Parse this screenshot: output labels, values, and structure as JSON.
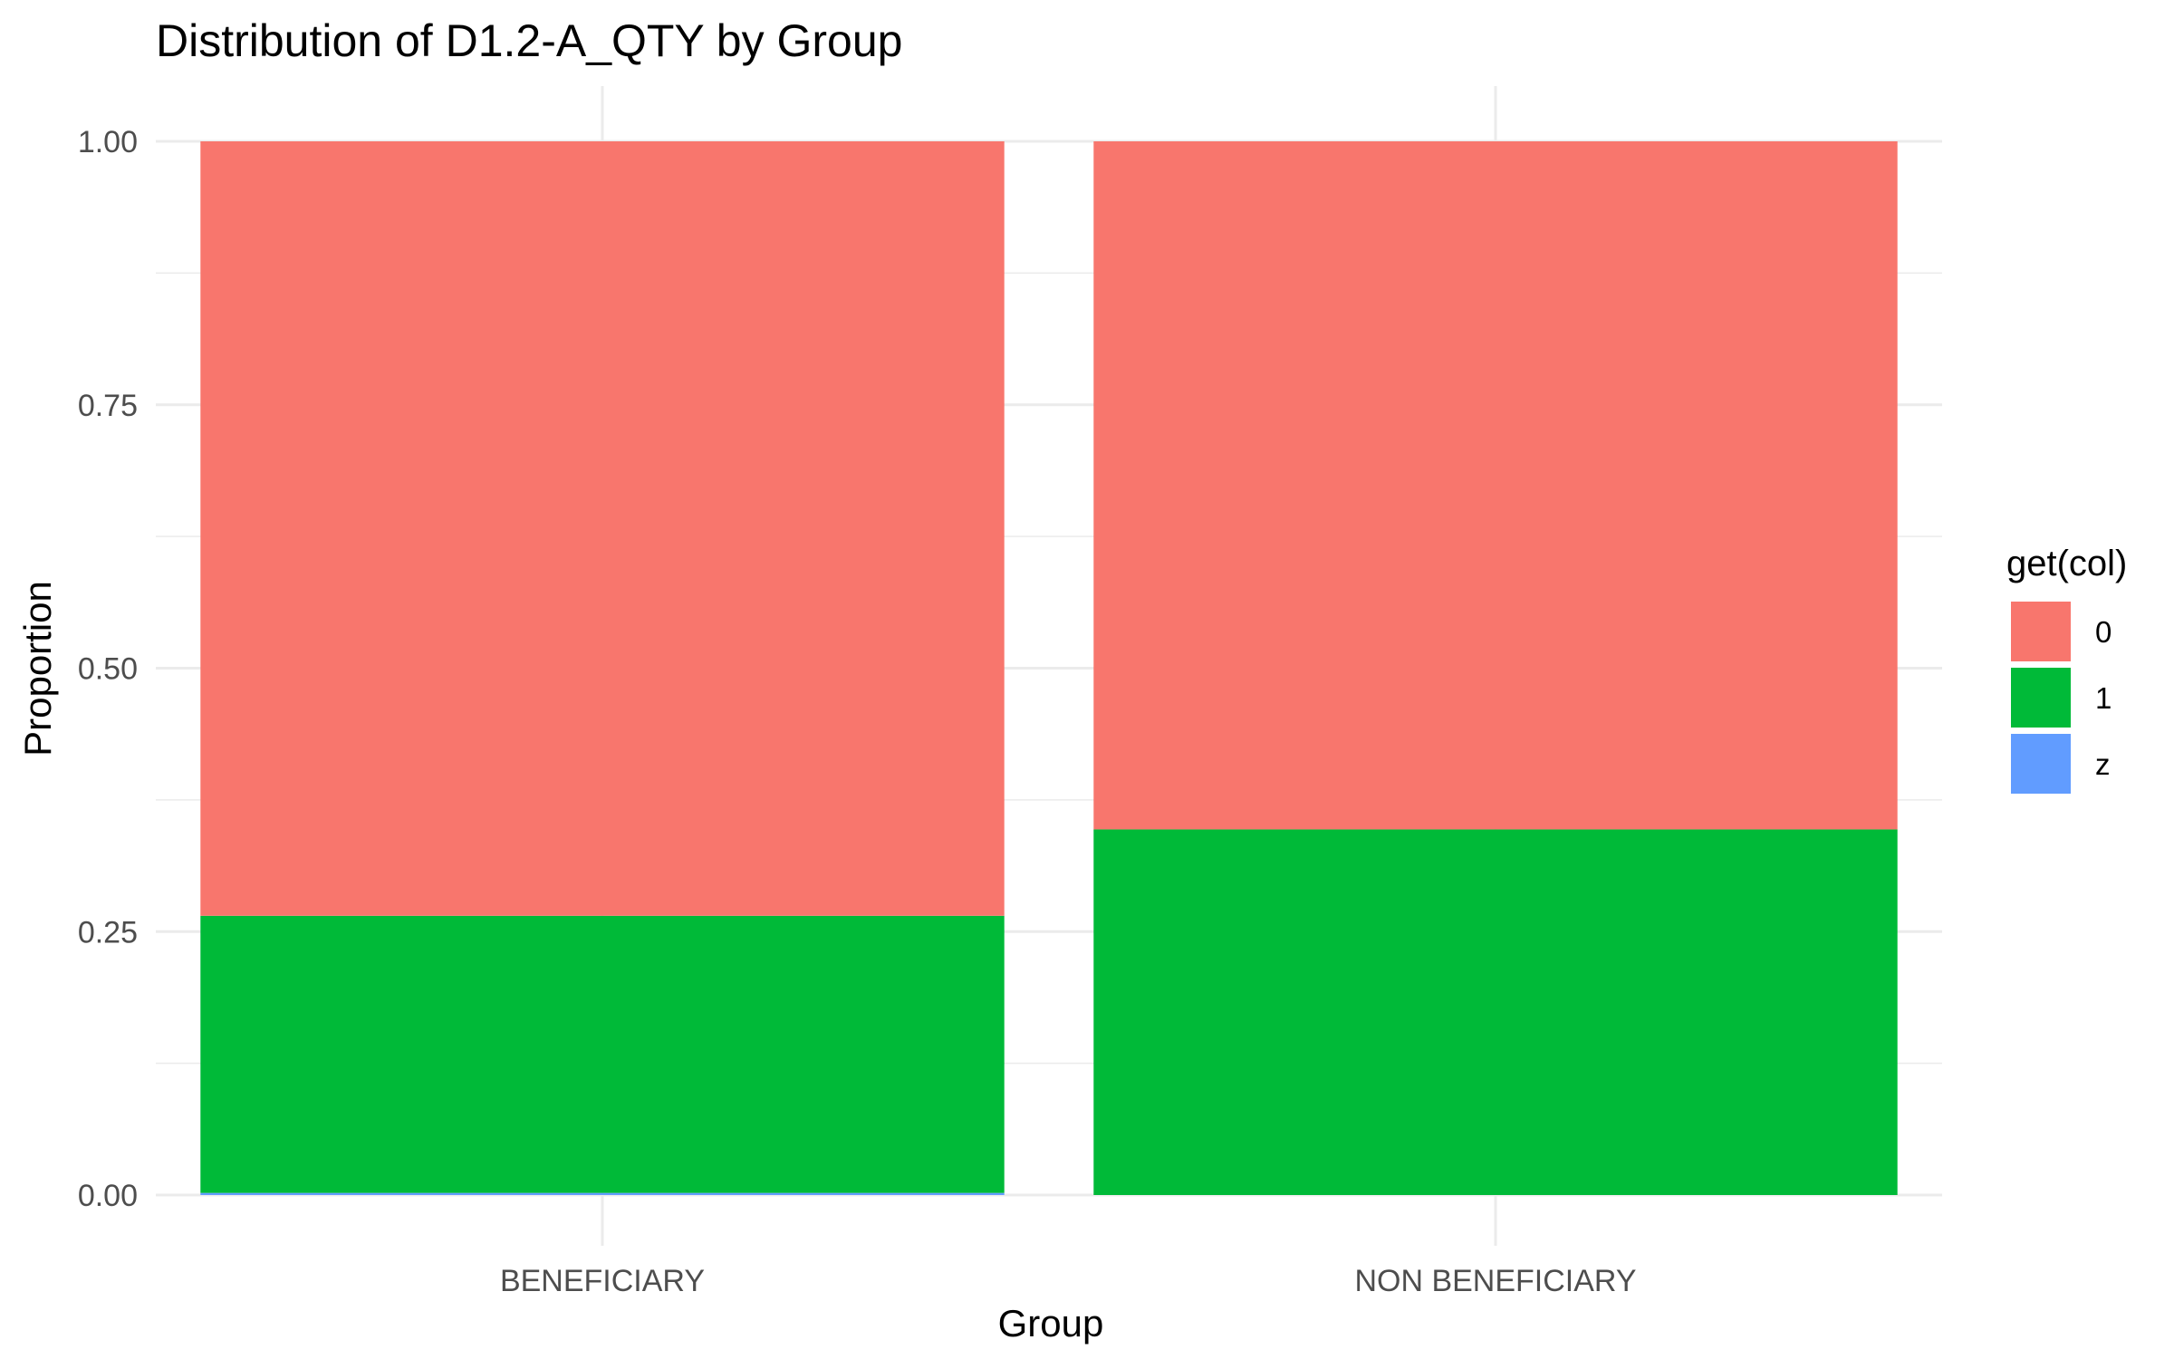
{
  "chart_data": {
    "type": "bar",
    "stacked": true,
    "title": "Distribution of D1.2-A_QTY by Group",
    "xlabel": "Group",
    "ylabel": "Proportion",
    "categories": [
      "BENEFICIARY",
      "NON BENEFICIARY"
    ],
    "ylim": [
      0,
      1
    ],
    "yticks": [
      "0.00",
      "0.25",
      "0.50",
      "0.75",
      "1.00"
    ],
    "grid": true,
    "legend": {
      "title": "get(col)",
      "position": "right",
      "entries": [
        "0",
        "1",
        "z"
      ]
    },
    "series": [
      {
        "name": "0",
        "color": "#F8766D",
        "values": [
          0.735,
          0.653
        ]
      },
      {
        "name": "1",
        "color": "#00BA38",
        "values": [
          0.263,
          0.347
        ]
      },
      {
        "name": "z",
        "color": "#619CFF",
        "values": [
          0.002,
          0.0
        ]
      }
    ]
  }
}
